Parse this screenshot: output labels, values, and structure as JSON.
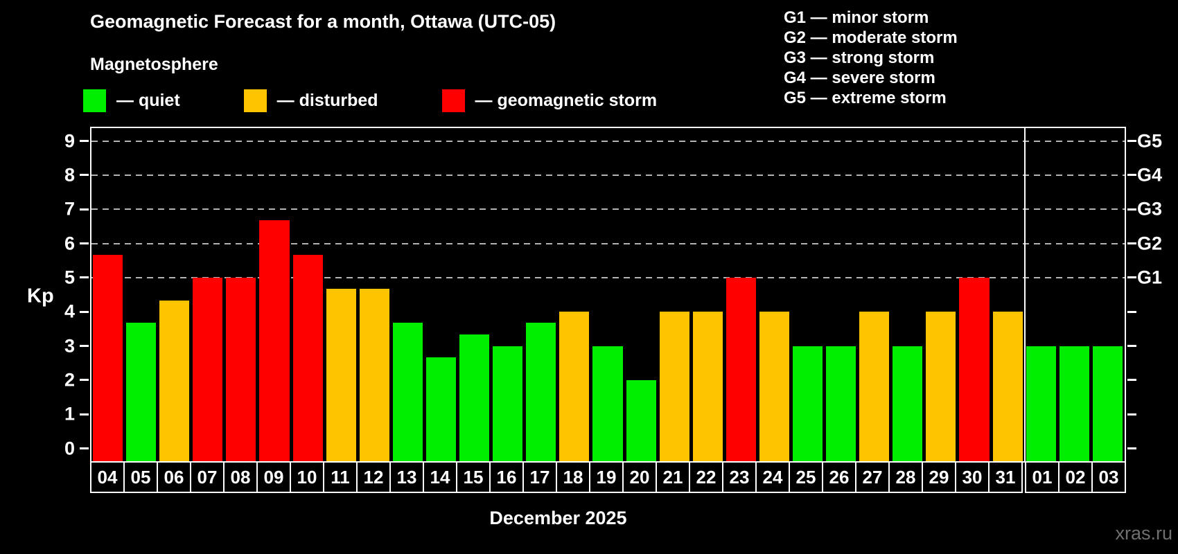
{
  "header": {
    "title": "Geomagnetic Forecast for a month, Ottawa (UTC-05)",
    "subtitle": "Magnetosphere"
  },
  "condition_legend": [
    {
      "id": "quiet",
      "label": "— quiet",
      "color": "#00ee00"
    },
    {
      "id": "disturbed",
      "label": "— disturbed",
      "color": "#ffc400"
    },
    {
      "id": "storm",
      "label": "— geomagnetic storm",
      "color": "#ff0000"
    }
  ],
  "storm_scale_legend": [
    {
      "code": "G1",
      "label": "G1 — minor storm"
    },
    {
      "code": "G2",
      "label": "G2 — moderate storm"
    },
    {
      "code": "G3",
      "label": "G3 — strong storm"
    },
    {
      "code": "G4",
      "label": "G4 — severe storm"
    },
    {
      "code": "G5",
      "label": "G5 — extreme storm"
    }
  ],
  "chart_data": {
    "type": "bar",
    "title": "Geomagnetic Forecast for a month, Ottawa (UTC-05)",
    "ylabel": "Kp",
    "xlabel": "December 2025",
    "ylim": [
      -0.375,
      9.375
    ],
    "yticks": [
      0,
      1,
      2,
      3,
      4,
      5,
      6,
      7,
      8,
      9
    ],
    "grid_levels": [
      5,
      6,
      7,
      8,
      9
    ],
    "grid_style": "dashed horizontal lines, gray",
    "legend_position": "top",
    "right_axis": [
      {
        "kp": 5,
        "g": "G1"
      },
      {
        "kp": 6,
        "g": "G2"
      },
      {
        "kp": 7,
        "g": "G3"
      },
      {
        "kp": 8,
        "g": "G4"
      },
      {
        "kp": 9,
        "g": "G5"
      }
    ],
    "categories": [
      "04",
      "05",
      "06",
      "07",
      "08",
      "09",
      "10",
      "11",
      "12",
      "13",
      "14",
      "15",
      "16",
      "17",
      "18",
      "19",
      "20",
      "21",
      "22",
      "23",
      "24",
      "25",
      "26",
      "27",
      "28",
      "29",
      "30",
      "31",
      "01",
      "02",
      "03"
    ],
    "values": [
      5.67,
      3.67,
      4.33,
      5,
      5,
      6.67,
      5.67,
      4.67,
      4.67,
      3.67,
      2.67,
      3.33,
      3,
      3.67,
      4,
      3,
      2,
      4,
      4,
      5,
      4,
      3,
      3,
      4,
      3,
      4,
      5,
      4,
      3,
      3,
      3
    ],
    "statuses": [
      "storm",
      "quiet",
      "disturbed",
      "storm",
      "storm",
      "storm",
      "storm",
      "disturbed",
      "disturbed",
      "quiet",
      "quiet",
      "quiet",
      "quiet",
      "quiet",
      "disturbed",
      "quiet",
      "quiet",
      "disturbed",
      "disturbed",
      "storm",
      "disturbed",
      "quiet",
      "quiet",
      "disturbed",
      "quiet",
      "disturbed",
      "storm",
      "disturbed",
      "quiet",
      "quiet",
      "quiet"
    ],
    "status_colors": {
      "quiet": "#00ee00",
      "disturbed": "#ffc400",
      "storm": "#ff0000"
    },
    "month_split_index": 28
  },
  "footer": {
    "watermark": "xras.ru"
  }
}
